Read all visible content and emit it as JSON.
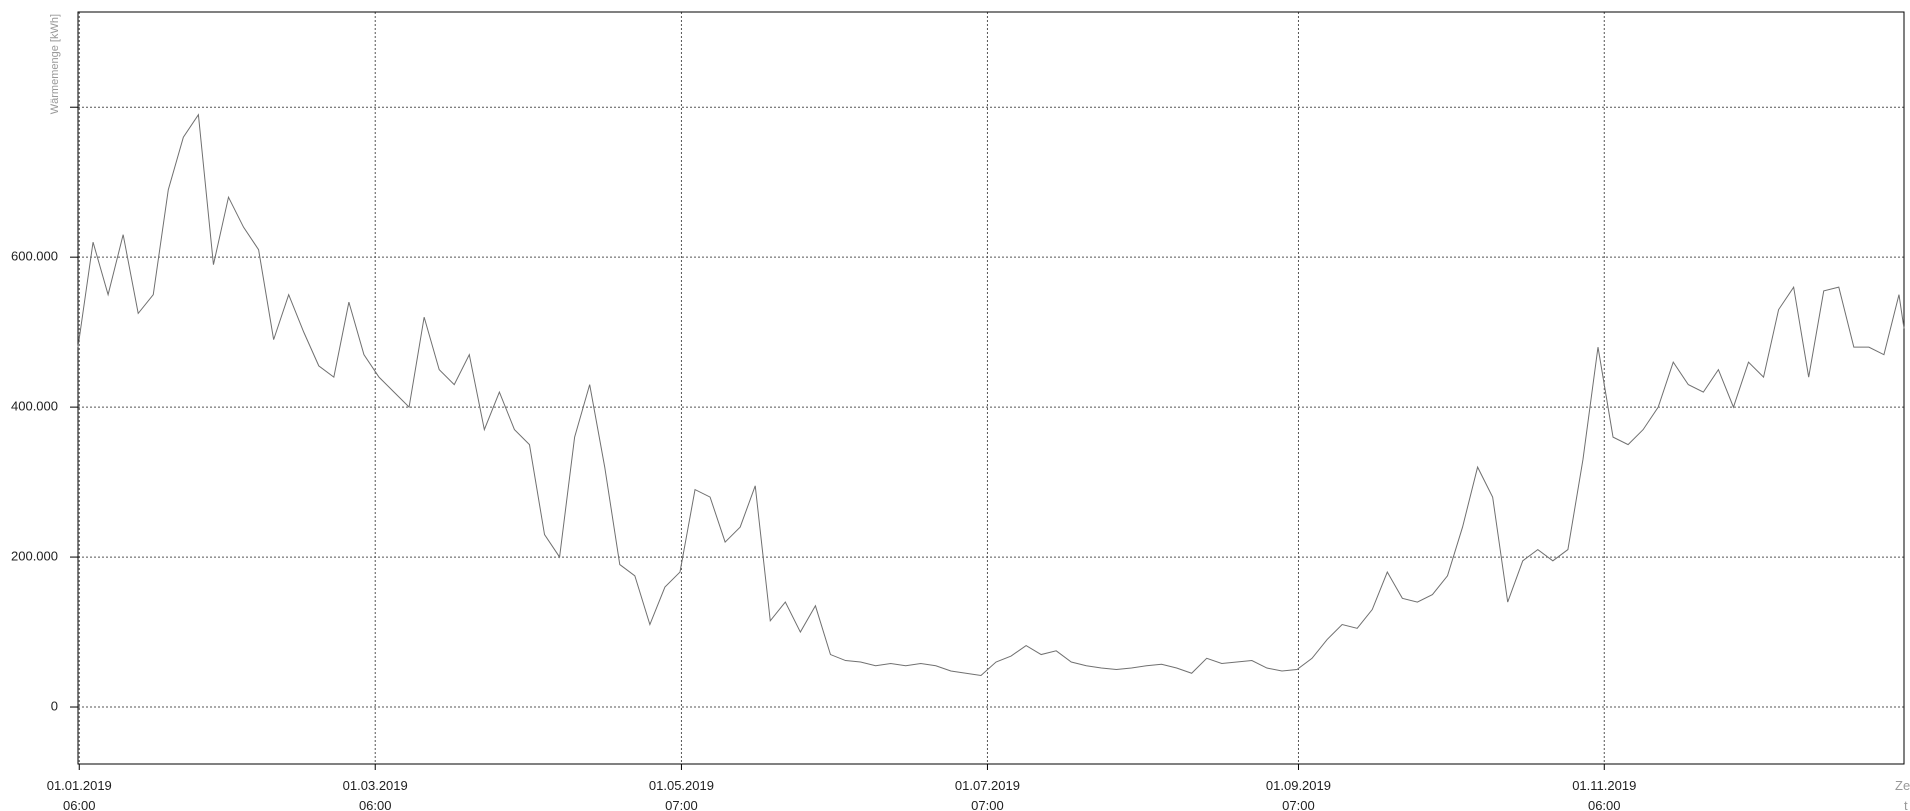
{
  "chart_data": {
    "type": "line",
    "y_label": "Wärmemenge [kWh]",
    "x_label": "Zeit t",
    "xlim": [
      "01.01.2019",
      "31.12.2019"
    ],
    "xticks": [
      "01.01.2019\n06:00",
      "01.03.2019\n06:00",
      "01.05.2019\n07:00",
      "01.07.2019\n07:00",
      "01.09.2019\n07:00",
      "01.11.2019\n06:00"
    ],
    "ylim": [
      -76000,
      927000
    ],
    "yticks": [
      0,
      {
        "value": 200000,
        "label": "200.000"
      },
      {
        "value": 400000,
        "label": "400.000"
      },
      {
        "value": 600000,
        "label": "600.000"
      },
      {
        "value": 800000,
        "label": null
      }
    ],
    "grid": true,
    "x": [
      "01.01.2019",
      "04.01.2019",
      "07.01.2019",
      "10.01.2019",
      "13.01.2019",
      "16.01.2019",
      "19.01.2019",
      "22.01.2019",
      "25.01.2019",
      "28.01.2019",
      "31.01.2019",
      "03.02.2019",
      "06.02.2019",
      "09.02.2019",
      "12.02.2019",
      "15.02.2019",
      "18.02.2019",
      "21.02.2019",
      "24.02.2019",
      "27.02.2019",
      "02.03.2019",
      "05.03.2019",
      "08.03.2019",
      "11.03.2019",
      "14.03.2019",
      "17.03.2019",
      "20.03.2019",
      "23.03.2019",
      "26.03.2019",
      "29.03.2019",
      "01.04.2019",
      "04.04.2019",
      "07.04.2019",
      "10.04.2019",
      "13.04.2019",
      "16.04.2019",
      "19.04.2019",
      "22.04.2019",
      "25.04.2019",
      "28.04.2019",
      "01.05.2019",
      "04.05.2019",
      "07.05.2019",
      "10.05.2019",
      "13.05.2019",
      "16.05.2019",
      "19.05.2019",
      "22.05.2019",
      "25.05.2019",
      "28.05.2019",
      "31.05.2019",
      "03.06.2019",
      "06.06.2019",
      "09.06.2019",
      "12.06.2019",
      "15.06.2019",
      "18.06.2019",
      "21.06.2019",
      "24.06.2019",
      "27.06.2019",
      "30.06.2019",
      "03.07.2019",
      "06.07.2019",
      "09.07.2019",
      "12.07.2019",
      "15.07.2019",
      "18.07.2019",
      "21.07.2019",
      "24.07.2019",
      "27.07.2019",
      "30.07.2019",
      "02.08.2019",
      "05.08.2019",
      "08.08.2019",
      "11.08.2019",
      "14.08.2019",
      "17.08.2019",
      "20.08.2019",
      "23.08.2019",
      "26.08.2019",
      "29.08.2019",
      "01.09.2019",
      "04.09.2019",
      "07.09.2019",
      "10.09.2019",
      "13.09.2019",
      "16.09.2019",
      "19.09.2019",
      "22.09.2019",
      "25.09.2019",
      "28.09.2019",
      "01.10.2019",
      "04.10.2019",
      "07.10.2019",
      "10.10.2019",
      "13.10.2019",
      "16.10.2019",
      "19.10.2019",
      "22.10.2019",
      "25.10.2019",
      "28.10.2019",
      "31.10.2019",
      "03.11.2019",
      "06.11.2019",
      "09.11.2019",
      "12.11.2019",
      "15.11.2019",
      "18.11.2019",
      "21.11.2019",
      "24.11.2019",
      "27.11.2019",
      "30.11.2019",
      "03.12.2019",
      "06.12.2019",
      "09.12.2019",
      "12.12.2019",
      "15.12.2019",
      "18.12.2019",
      "21.12.2019",
      "24.12.2019",
      "27.12.2019",
      "30.12.2019",
      "31.12.2019"
    ],
    "series": [
      {
        "color": "#707070",
        "values": [
          480000,
          620000,
          550000,
          630000,
          525000,
          550000,
          690000,
          760000,
          790000,
          590000,
          680000,
          640000,
          610000,
          490000,
          550000,
          500000,
          455000,
          440000,
          540000,
          470000,
          440000,
          420000,
          400000,
          520000,
          450000,
          430000,
          470000,
          370000,
          420000,
          370000,
          350000,
          230000,
          200000,
          360000,
          430000,
          320000,
          190000,
          175000,
          110000,
          160000,
          180000,
          290000,
          280000,
          220000,
          240000,
          295000,
          115000,
          140000,
          100000,
          135000,
          70000,
          62000,
          60000,
          55000,
          58000,
          55000,
          58000,
          55000,
          48000,
          45000,
          42000,
          60000,
          68000,
          82000,
          70000,
          75000,
          60000,
          55000,
          52000,
          50000,
          52000,
          55000,
          57000,
          52000,
          45000,
          65000,
          58000,
          60000,
          62000,
          52000,
          48000,
          50000,
          65000,
          90000,
          110000,
          105000,
          130000,
          180000,
          145000,
          140000,
          150000,
          175000,
          240000,
          320000,
          280000,
          140000,
          195000,
          210000,
          195000,
          210000,
          330000,
          480000,
          360000,
          350000,
          370000,
          400000,
          460000,
          430000,
          420000,
          450000,
          400000,
          460000,
          440000,
          530000,
          560000,
          440000,
          555000,
          560000,
          480000,
          480000,
          470000,
          550000,
          505000
        ]
      }
    ]
  }
}
